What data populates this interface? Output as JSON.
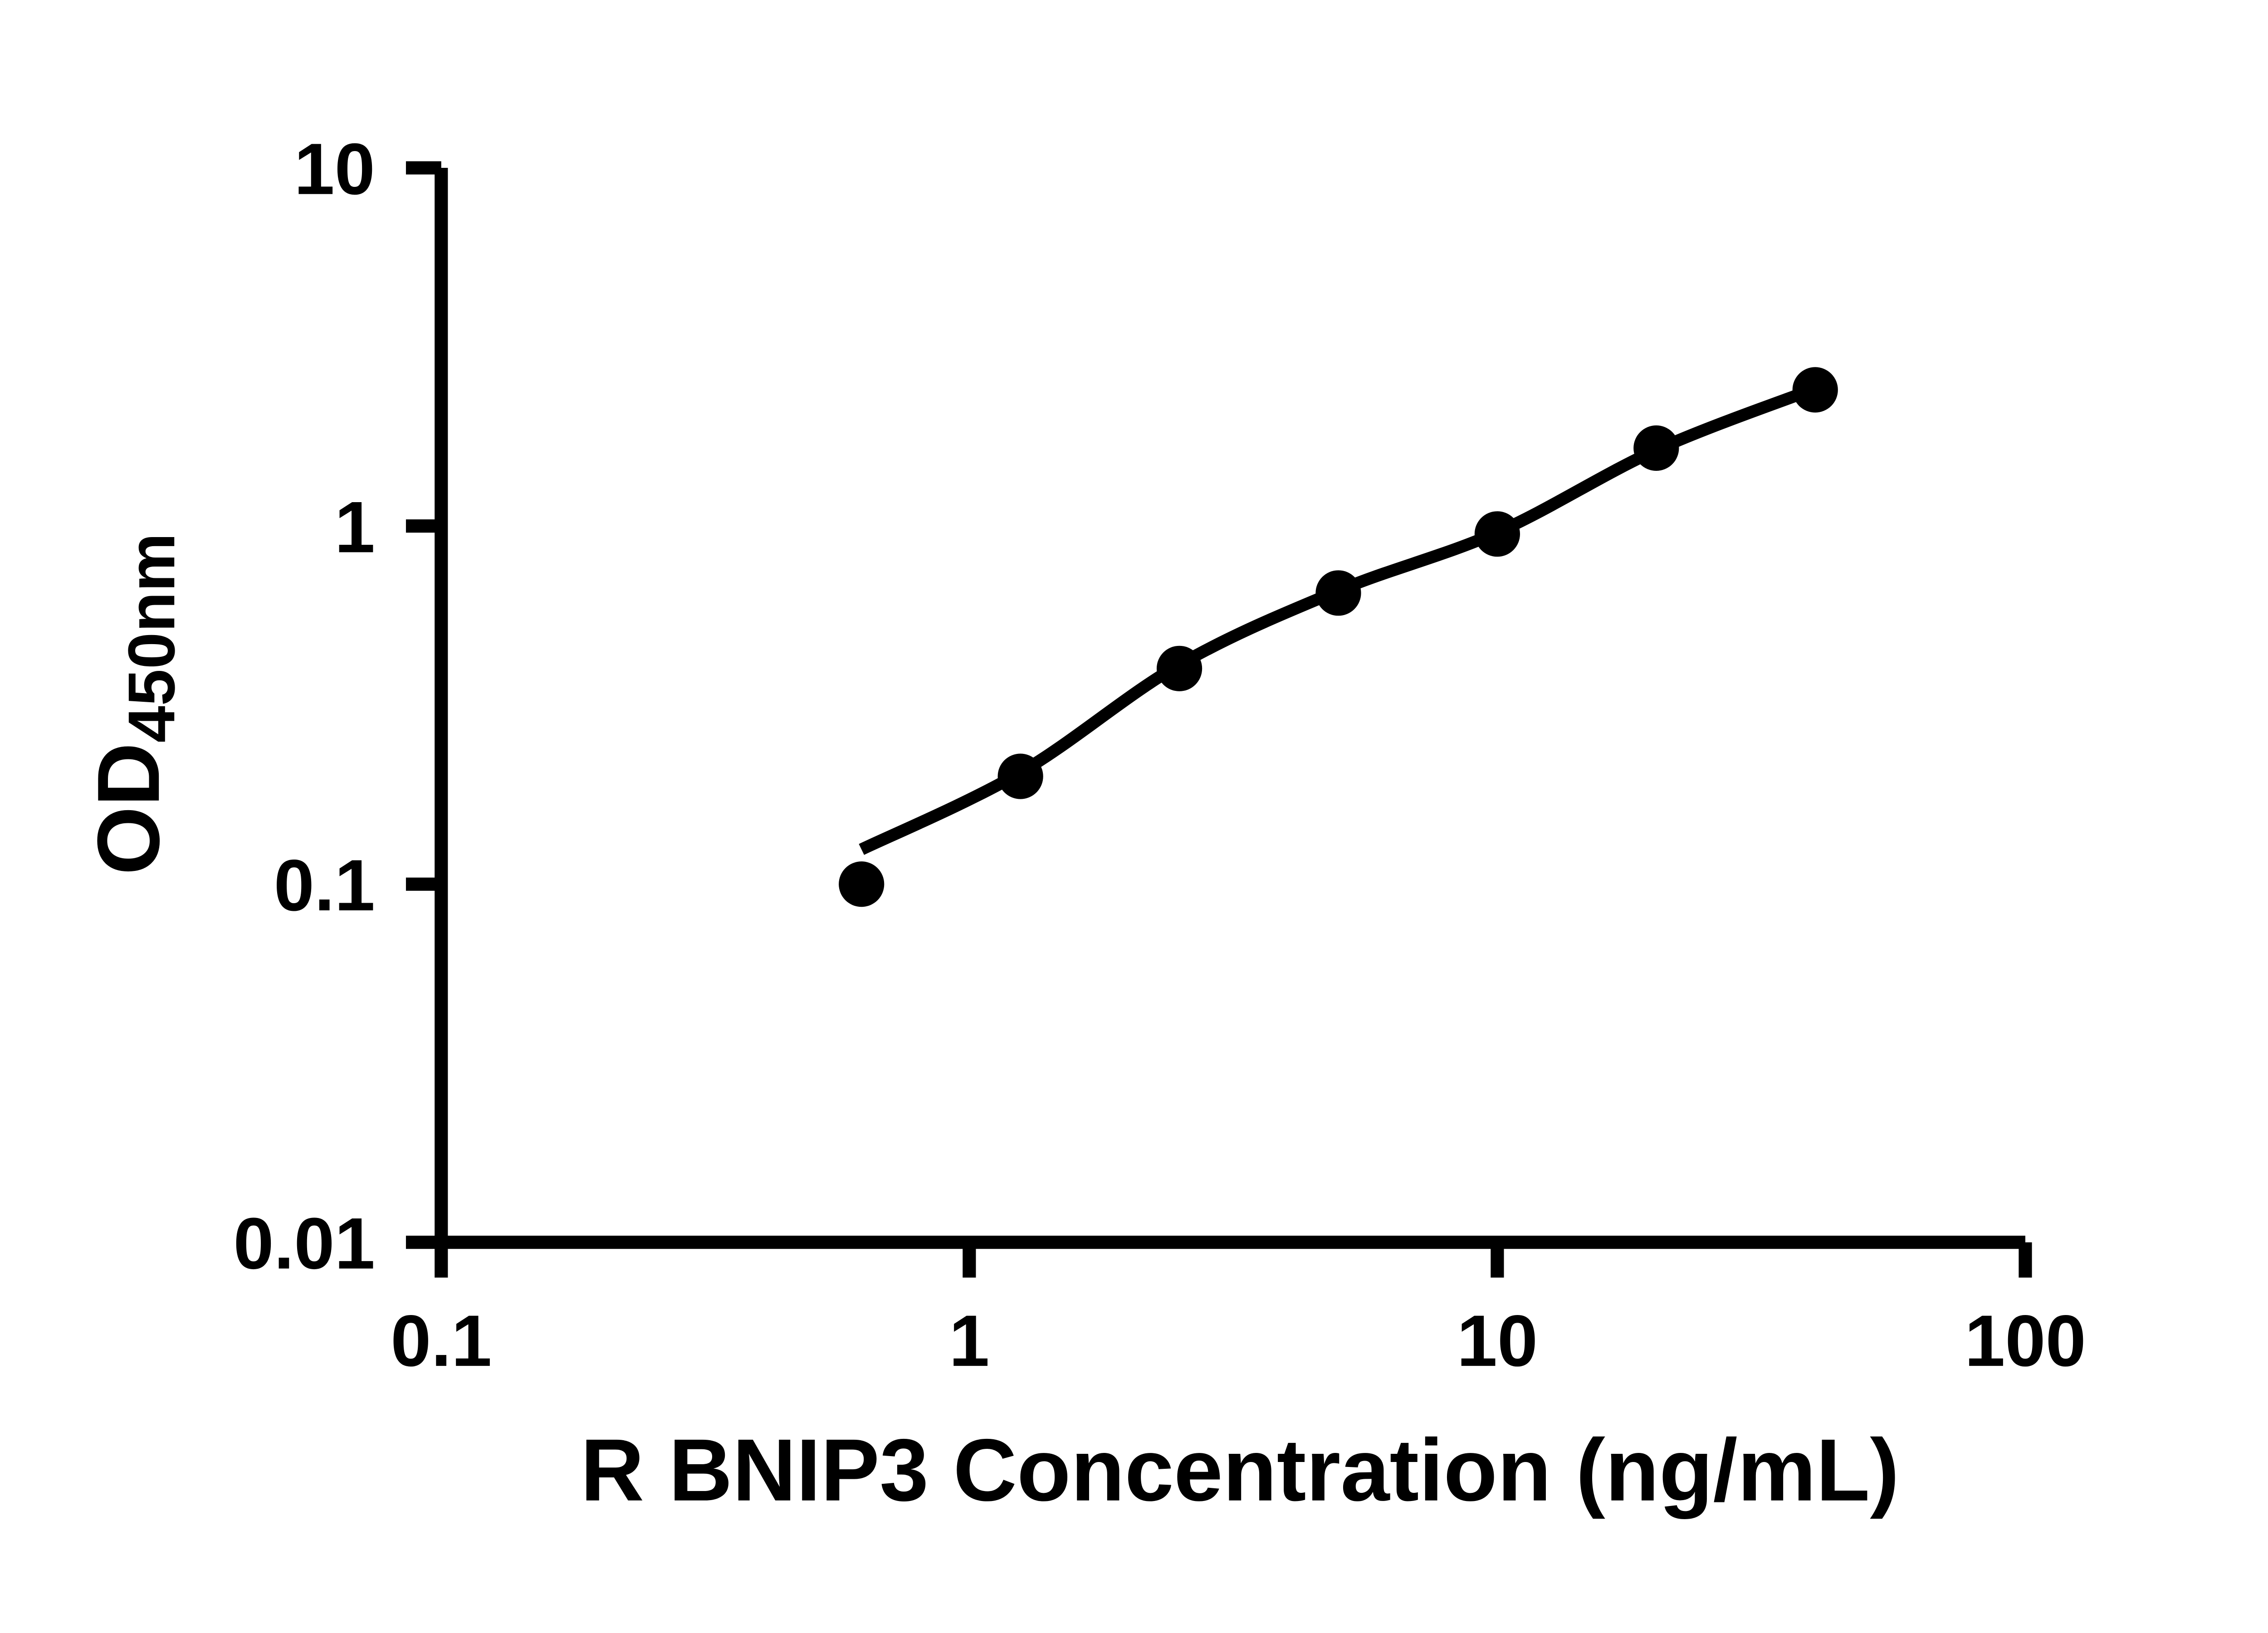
{
  "figure": {
    "background": "#ffffff",
    "ink": "#000000"
  },
  "chart_data": {
    "type": "scatter",
    "title": "",
    "xlabel": "R BNIP3 Concentration (ng/mL)",
    "ylabel_main": "OD",
    "ylabel_sub": "450nm",
    "x_scale": "log10",
    "y_scale": "log10",
    "xlim": [
      0.1,
      100
    ],
    "ylim": [
      0.01,
      10
    ],
    "grid": false,
    "legend": "none",
    "x_ticks": [
      {
        "value": 0.1,
        "label": "0.1"
      },
      {
        "value": 1,
        "label": "1"
      },
      {
        "value": 10,
        "label": "10"
      },
      {
        "value": 100,
        "label": "100"
      }
    ],
    "y_ticks": [
      {
        "value": 10,
        "label": "10"
      },
      {
        "value": 1,
        "label": "1"
      },
      {
        "value": 0.1,
        "label": "0.1"
      },
      {
        "value": 0.01,
        "label": "0.01"
      }
    ],
    "series": [
      {
        "marker": "filled-circle",
        "color": "#000000",
        "points": [
          {
            "x": 0.625,
            "y": 0.1
          },
          {
            "x": 1.25,
            "y": 0.2
          },
          {
            "x": 2.5,
            "y": 0.4
          },
          {
            "x": 5,
            "y": 0.65
          },
          {
            "x": 10,
            "y": 0.95
          },
          {
            "x": 20,
            "y": 1.65
          },
          {
            "x": 40,
            "y": 2.4
          }
        ]
      }
    ],
    "fit_curve": {
      "color": "#000000",
      "anchors": [
        {
          "x": 0.625,
          "y": 0.125
        },
        {
          "x": 1.25,
          "y": 0.205
        },
        {
          "x": 2.5,
          "y": 0.41
        },
        {
          "x": 5,
          "y": 0.66
        },
        {
          "x": 10,
          "y": 0.96
        },
        {
          "x": 20,
          "y": 1.63
        },
        {
          "x": 40,
          "y": 2.42
        }
      ]
    }
  }
}
